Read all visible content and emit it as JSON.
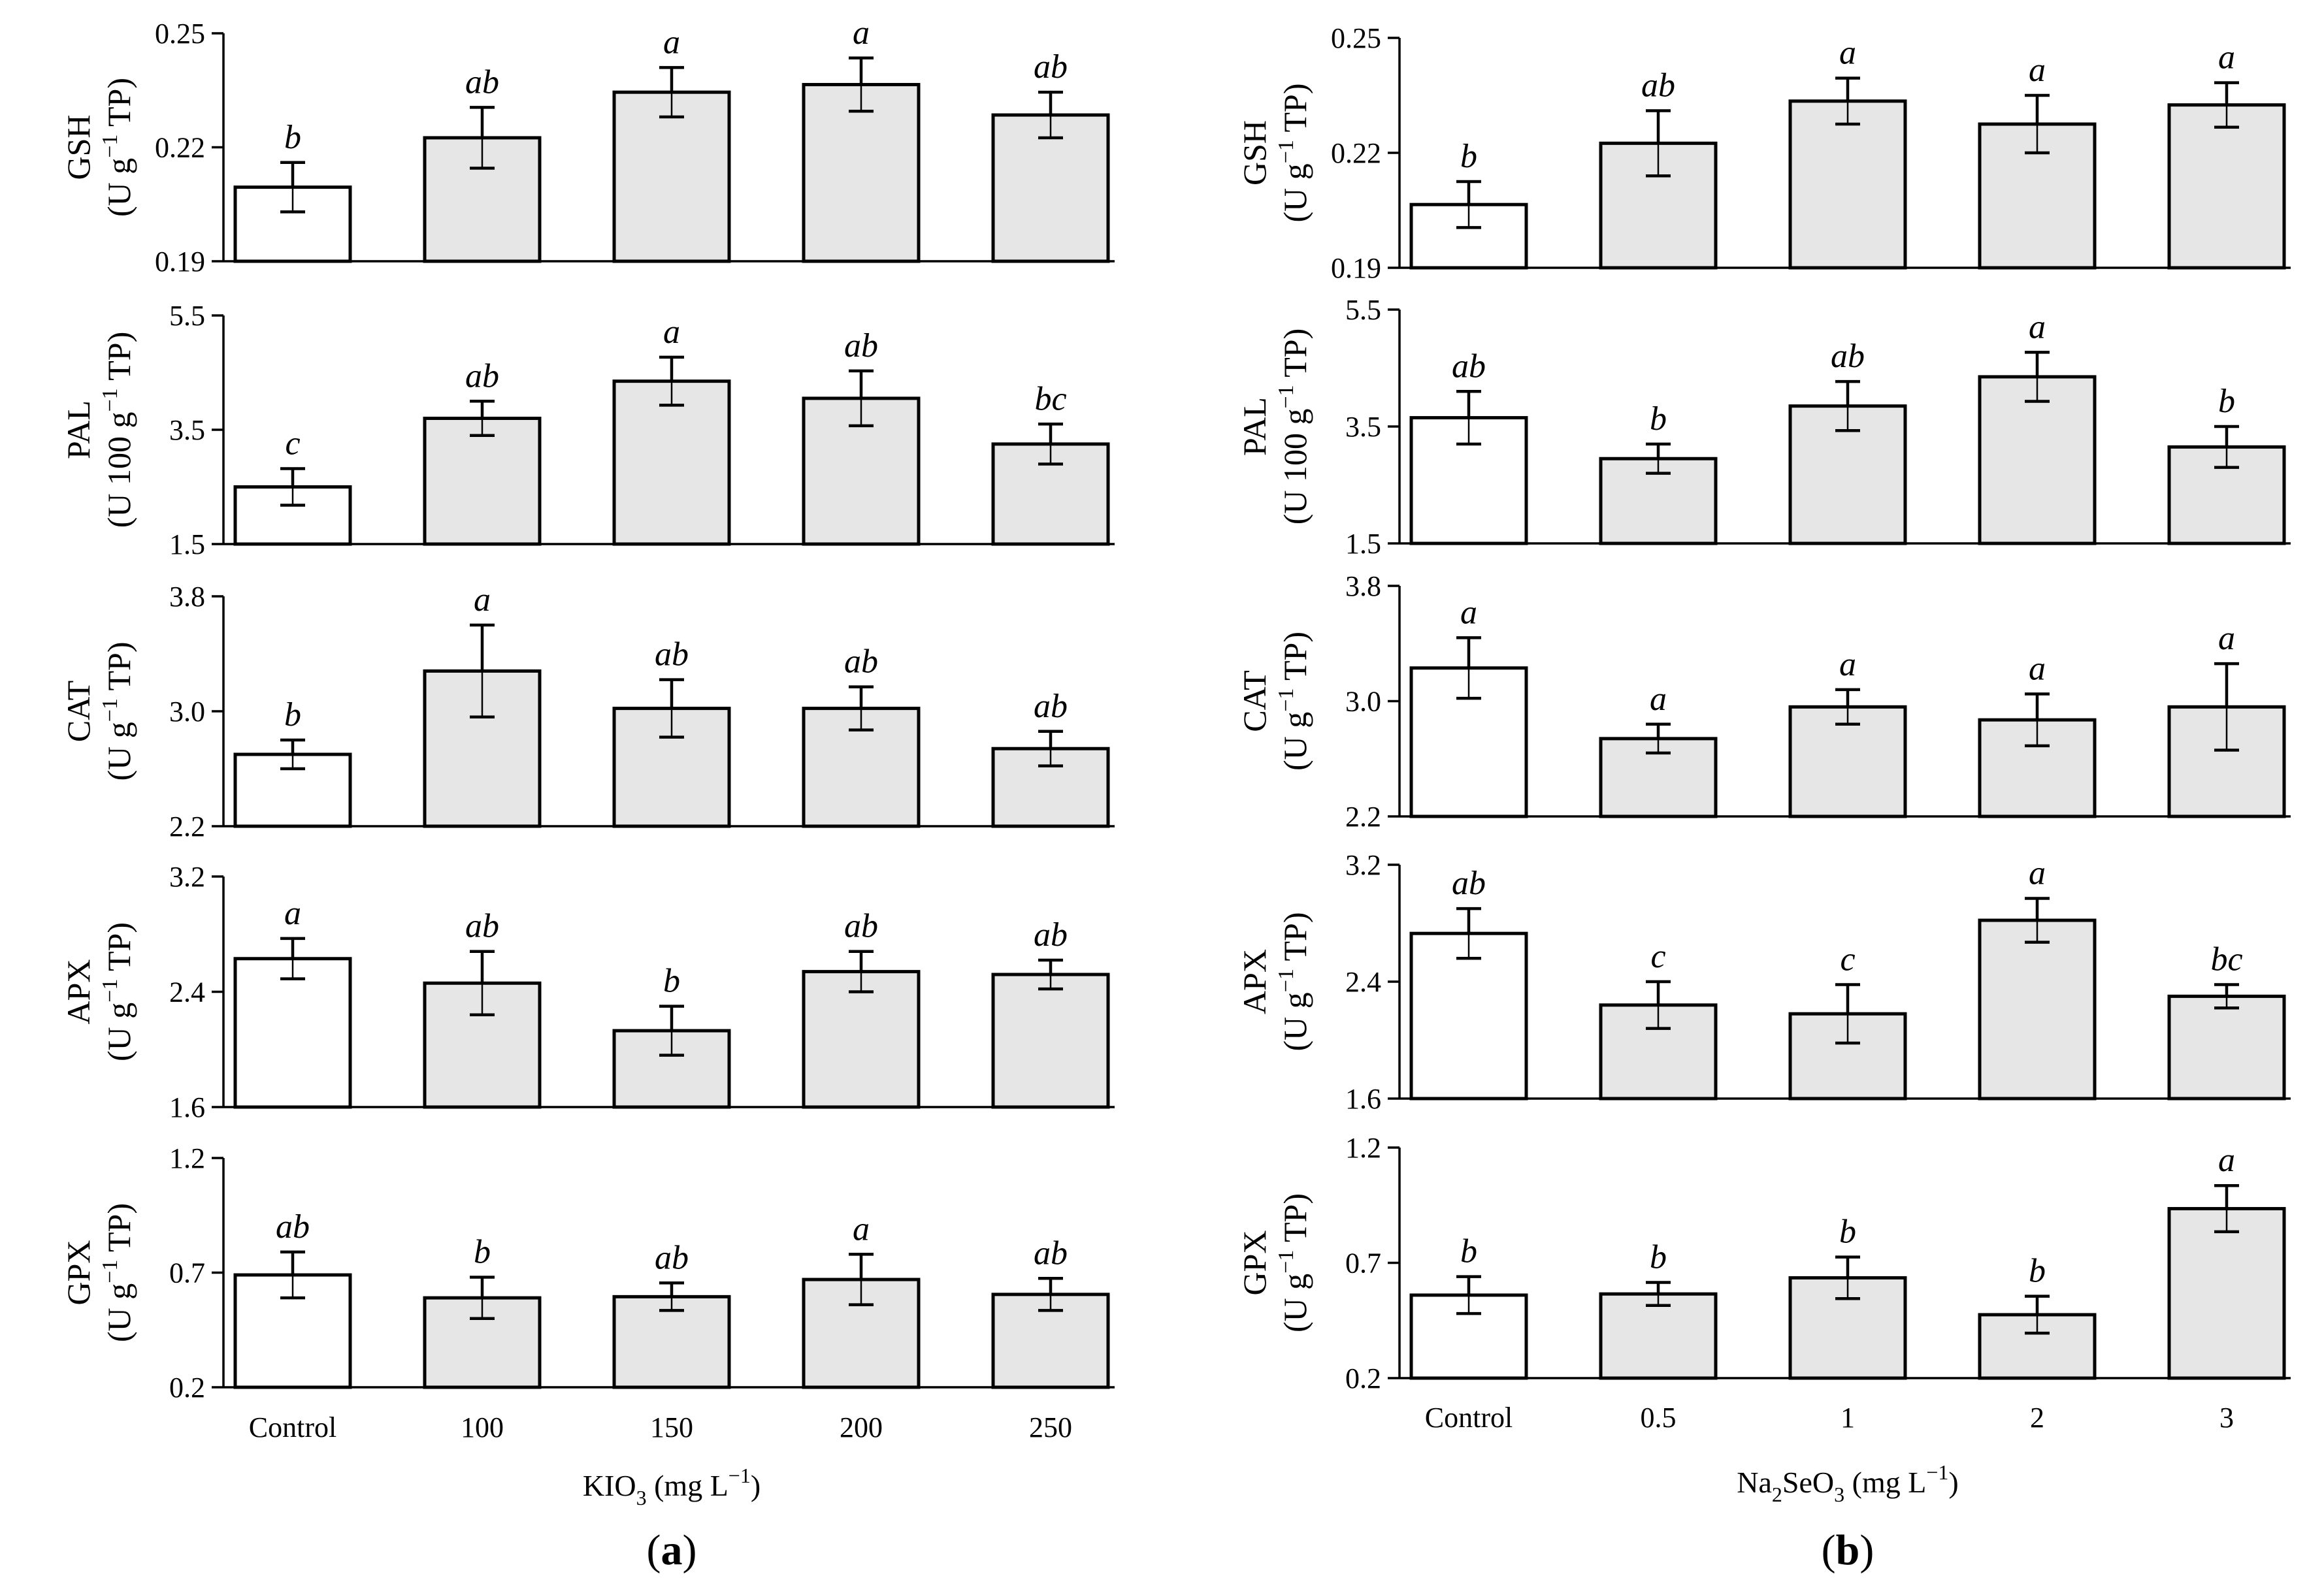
{
  "colors": {
    "control_fill": "#ffffff",
    "treatment_fill": "#e6e6e6",
    "stroke": "#000000"
  },
  "chart_data": [
    {
      "panel": "a",
      "panel_label": "a",
      "type": "bar",
      "xlabel": {
        "main": "KIO",
        "sub": "3",
        "unit": " (mg L",
        "sup": "−1",
        "close": ")"
      },
      "categories": [
        "Control",
        "100",
        "150",
        "200",
        "250"
      ],
      "subplots": [
        {
          "name": "GSH",
          "unit": "(U g",
          "unit_sup": "−1",
          "unit_end": " TP)",
          "ylim": [
            0.19,
            0.25
          ],
          "ticks": [
            "0.19",
            "0.22",
            "0.25"
          ],
          "values": [
            0.2095,
            0.2225,
            0.2345,
            0.2365,
            0.2285
          ],
          "errors": [
            0.0065,
            0.008,
            0.0065,
            0.007,
            0.006
          ],
          "letters": [
            "b",
            "ab",
            "a",
            "a",
            "ab"
          ]
        },
        {
          "name": "PAL",
          "unit": "(U 100 g",
          "unit_sup": "−1",
          "unit_end": " TP)",
          "ylim": [
            1.5,
            5.5
          ],
          "ticks": [
            "1.5",
            "3.5",
            "5.5"
          ],
          "values": [
            2.5,
            3.7,
            4.35,
            4.05,
            3.25
          ],
          "errors": [
            0.32,
            0.3,
            0.42,
            0.48,
            0.35
          ],
          "letters": [
            "c",
            "ab",
            "a",
            "ab",
            "bc"
          ]
        },
        {
          "name": "CAT",
          "unit": "(U g",
          "unit_sup": "−1",
          "unit_end": " TP)",
          "ylim": [
            2.2,
            3.8
          ],
          "ticks": [
            "2.2",
            "3.0",
            "3.8"
          ],
          "values": [
            2.7,
            3.28,
            3.02,
            3.02,
            2.74
          ],
          "errors": [
            0.1,
            0.32,
            0.2,
            0.15,
            0.12
          ],
          "letters": [
            "b",
            "a",
            "ab",
            "ab",
            "ab"
          ]
        },
        {
          "name": "APX",
          "unit": "(U g",
          "unit_sup": "−1",
          "unit_end": " TP)",
          "ylim": [
            1.6,
            3.2
          ],
          "ticks": [
            "1.6",
            "2.4",
            "3.2"
          ],
          "values": [
            2.63,
            2.46,
            2.13,
            2.54,
            2.52
          ],
          "errors": [
            0.14,
            0.22,
            0.17,
            0.14,
            0.1
          ],
          "letters": [
            "a",
            "ab",
            "b",
            "ab",
            "ab"
          ]
        },
        {
          "name": "GPX",
          "unit": "(U g",
          "unit_sup": "−1",
          "unit_end": " TP)",
          "ylim": [
            0.2,
            1.2
          ],
          "ticks": [
            "0.2",
            "0.7",
            "1.2"
          ],
          "values": [
            0.69,
            0.59,
            0.595,
            0.67,
            0.605
          ],
          "errors": [
            0.1,
            0.09,
            0.06,
            0.11,
            0.07
          ],
          "letters": [
            "ab",
            "b",
            "ab",
            "a",
            "ab"
          ]
        }
      ]
    },
    {
      "panel": "b",
      "panel_label": "b",
      "type": "bar",
      "xlabel": {
        "main": "Na",
        "sub": "2",
        "main2": "SeO",
        "sub2": "3",
        "unit": " (mg L",
        "sup": "−1",
        "close": ")"
      },
      "categories": [
        "Control",
        "0.5",
        "1",
        "2",
        "3"
      ],
      "subplots": [
        {
          "name": "GSH",
          "unit": "(U g",
          "unit_sup": "−1",
          "unit_end": " TP)",
          "ylim": [
            0.19,
            0.25
          ],
          "ticks": [
            "0.19",
            "0.22",
            "0.25"
          ],
          "values": [
            0.2065,
            0.2225,
            0.2335,
            0.2275,
            0.2325
          ],
          "errors": [
            0.006,
            0.0085,
            0.006,
            0.0075,
            0.0058
          ],
          "letters": [
            "b",
            "ab",
            "a",
            "a",
            "a"
          ]
        },
        {
          "name": "PAL",
          "unit": "(U 100 g",
          "unit_sup": "−1",
          "unit_end": " TP)",
          "ylim": [
            1.5,
            5.5
          ],
          "ticks": [
            "1.5",
            "3.5",
            "5.5"
          ],
          "values": [
            3.65,
            2.95,
            3.85,
            4.35,
            3.15
          ],
          "errors": [
            0.45,
            0.25,
            0.42,
            0.42,
            0.35
          ],
          "letters": [
            "ab",
            "b",
            "ab",
            "a",
            "b"
          ]
        },
        {
          "name": "CAT",
          "unit": "(U g",
          "unit_sup": "−1",
          "unit_end": " TP)",
          "ylim": [
            2.2,
            3.8
          ],
          "ticks": [
            "2.2",
            "3.0",
            "3.8"
          ],
          "values": [
            3.23,
            2.74,
            2.96,
            2.87,
            2.96
          ],
          "errors": [
            0.21,
            0.1,
            0.12,
            0.18,
            0.3
          ],
          "letters": [
            "a",
            "a",
            "a",
            "a",
            "a"
          ]
        },
        {
          "name": "APX",
          "unit": "(U g",
          "unit_sup": "−1",
          "unit_end": " TP)",
          "ylim": [
            1.6,
            3.2
          ],
          "ticks": [
            "1.6",
            "2.4",
            "3.2"
          ],
          "values": [
            2.73,
            2.24,
            2.18,
            2.82,
            2.3
          ],
          "errors": [
            0.17,
            0.16,
            0.2,
            0.15,
            0.08
          ],
          "letters": [
            "ab",
            "c",
            "c",
            "a",
            "bc"
          ]
        },
        {
          "name": "GPX",
          "unit": "(U g",
          "unit_sup": "−1",
          "unit_end": " TP)",
          "ylim": [
            0.2,
            1.2
          ],
          "ticks": [
            "0.2",
            "0.7",
            "1.2"
          ],
          "values": [
            0.56,
            0.565,
            0.635,
            0.475,
            0.935
          ],
          "errors": [
            0.08,
            0.05,
            0.09,
            0.08,
            0.1
          ],
          "letters": [
            "b",
            "b",
            "b",
            "b",
            "a"
          ]
        }
      ]
    }
  ]
}
